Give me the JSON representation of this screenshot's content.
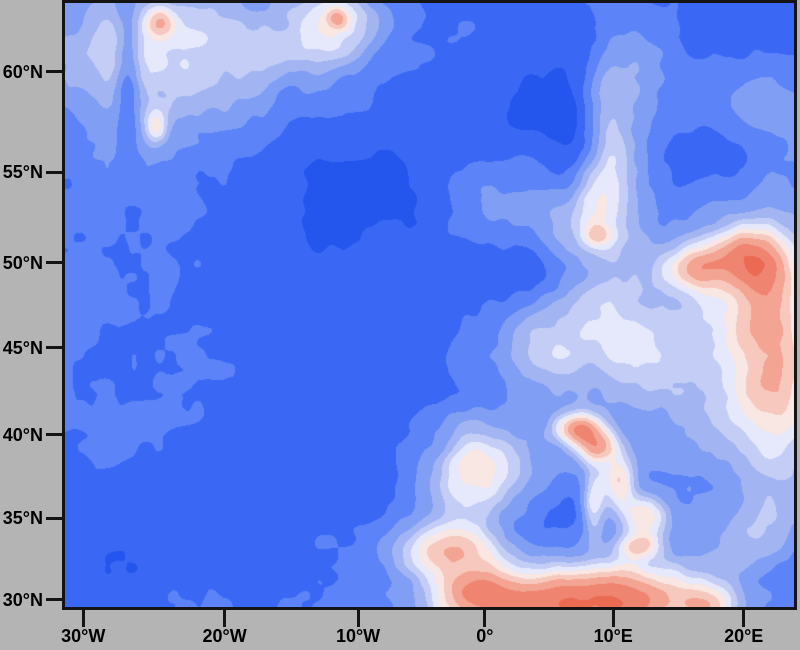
{
  "figure": {
    "background": "#b4b4b4",
    "frame_color": "#141414",
    "tick_color": "#141414",
    "label_color": "#000000"
  },
  "axes": {
    "lat_ticks": [
      {
        "label": "60°N",
        "pos": 0.114
      },
      {
        "label": "55°N",
        "pos": 0.28
      },
      {
        "label": "50°N",
        "pos": 0.43
      },
      {
        "label": "45°N",
        "pos": 0.571
      },
      {
        "label": "40°N",
        "pos": 0.715
      },
      {
        "label": "35°N",
        "pos": 0.853
      },
      {
        "label": "30°N",
        "pos": 0.988
      }
    ],
    "lon_ticks": [
      {
        "label": "30°W",
        "pos": 0.025
      },
      {
        "label": "20°W",
        "pos": 0.219
      },
      {
        "label": "10°W",
        "pos": 0.402
      },
      {
        "label": "0°",
        "pos": 0.576
      },
      {
        "label": "10°E",
        "pos": 0.752
      },
      {
        "label": "20°E",
        "pos": 0.931
      }
    ]
  },
  "map": {
    "type": "filled-contour-field",
    "region": "North Atlantic / Europe",
    "palette": [
      {
        "max": -3.4,
        "color": "#2456ee"
      },
      {
        "max": -2.6,
        "color": "#3a68f5"
      },
      {
        "max": -1.9,
        "color": "#5c83f7"
      },
      {
        "max": -1.3,
        "color": "#7f9ef4"
      },
      {
        "max": -0.8,
        "color": "#a2b5f2"
      },
      {
        "max": -0.35,
        "color": "#c4cdf5"
      },
      {
        "max": 0.1,
        "color": "#e6e9fb"
      },
      {
        "max": 0.55,
        "color": "#f9e7e3"
      },
      {
        "max": 1.1,
        "color": "#f7c8bd"
      },
      {
        "max": 1.8,
        "color": "#f3a493"
      },
      {
        "max": 2.6,
        "color": "#ef8470"
      },
      {
        "max": 99,
        "color": "#ea6a52"
      }
    ],
    "field_model": {
      "base": -2.1,
      "noise": [
        {
          "freq": 4.5,
          "amp": 0.4,
          "ox": 11.3,
          "oy": 7.7
        },
        {
          "freq": 11,
          "amp": 0.3,
          "ox": 3.1,
          "oy": 9.4
        },
        {
          "freq": 24,
          "amp": 0.22,
          "ox": 5.7,
          "oy": 1.2
        },
        {
          "freq": 55,
          "amp": 0.12,
          "ox": 8.9,
          "oy": 4.3
        }
      ],
      "blobs": [
        {
          "u": 0.36,
          "v": 0.4,
          "sx": 0.26,
          "sy": 0.27,
          "a": -1.1
        },
        {
          "u": 0.52,
          "v": 0.24,
          "sx": 0.2,
          "sy": 0.15,
          "a": -0.7
        },
        {
          "u": 0.07,
          "v": 0.97,
          "sx": 0.2,
          "sy": 0.1,
          "a": -0.7
        },
        {
          "u": 0.3,
          "v": 0.8,
          "sx": 0.22,
          "sy": 0.13,
          "a": -0.55
        },
        {
          "u": 0.88,
          "v": 0.04,
          "sx": 0.13,
          "sy": 0.09,
          "a": -1.0
        },
        {
          "u": 0.635,
          "v": 0.445,
          "sx": 0.055,
          "sy": 0.04,
          "a": -0.9
        },
        {
          "u": 0.645,
          "v": 0.875,
          "sx": 0.07,
          "sy": 0.042,
          "a": -0.7
        },
        {
          "u": 0.755,
          "v": 0.815,
          "sx": 0.042,
          "sy": 0.038,
          "a": -0.55
        },
        {
          "u": 0.086,
          "v": 0.13,
          "sx": 0.012,
          "sy": 0.1,
          "a": -1.5
        },
        {
          "u": 0.52,
          "v": 0.6,
          "sx": 0.1,
          "sy": 0.075,
          "a": -0.5
        },
        {
          "u": 0.895,
          "v": 0.255,
          "sx": 0.045,
          "sy": 0.035,
          "a": -0.9
        },
        {
          "u": 0.695,
          "v": 0.22,
          "sx": 0.022,
          "sy": 0.09,
          "a": -1.2
        },
        {
          "u": 0.145,
          "v": 0.1,
          "sx": 0.1,
          "sy": 0.105,
          "a": 2.3
        },
        {
          "u": 0.13,
          "v": 0.03,
          "sx": 0.013,
          "sy": 0.018,
          "a": 1.6
        },
        {
          "u": 0.125,
          "v": 0.205,
          "sx": 0.011,
          "sy": 0.022,
          "a": 1.5
        },
        {
          "u": 0.375,
          "v": 0.03,
          "sx": 0.055,
          "sy": 0.042,
          "a": 2.3
        },
        {
          "u": 0.374,
          "v": 0.025,
          "sx": 0.01,
          "sy": 0.012,
          "a": 1.5
        },
        {
          "u": 0.33,
          "v": 0.085,
          "sx": 0.09,
          "sy": 0.045,
          "a": 1.0
        },
        {
          "u": 0.44,
          "v": 0.16,
          "sx": 0.08,
          "sy": 0.05,
          "a": 0.8
        },
        {
          "u": 0.745,
          "v": 0.22,
          "sx": 0.033,
          "sy": 0.125,
          "a": 2.2
        },
        {
          "u": 0.7,
          "v": 0.345,
          "sx": 0.05,
          "sy": 0.055,
          "a": 1.9
        },
        {
          "u": 0.8,
          "v": 0.09,
          "sx": 0.05,
          "sy": 0.07,
          "a": 1.1
        },
        {
          "u": 0.73,
          "v": 0.385,
          "sx": 0.013,
          "sy": 0.013,
          "a": 1.3
        },
        {
          "u": 0.57,
          "v": 0.33,
          "sx": 0.05,
          "sy": 0.07,
          "a": 1.5
        },
        {
          "u": 0.8,
          "v": 0.52,
          "sx": 0.15,
          "sy": 0.11,
          "a": 1.4
        },
        {
          "u": 0.67,
          "v": 0.56,
          "sx": 0.07,
          "sy": 0.06,
          "a": 1.2
        },
        {
          "u": 0.865,
          "v": 0.44,
          "sx": 0.03,
          "sy": 0.027,
          "a": 2.4
        },
        {
          "u": 0.925,
          "v": 0.415,
          "sx": 0.04,
          "sy": 0.033,
          "a": 2.2
        },
        {
          "u": 0.975,
          "v": 0.63,
          "sx": 0.05,
          "sy": 0.12,
          "a": 2.9
        },
        {
          "u": 0.96,
          "v": 0.45,
          "sx": 0.033,
          "sy": 0.05,
          "a": 2.2
        },
        {
          "u": 0.705,
          "v": 0.705,
          "sx": 0.022,
          "sy": 0.018,
          "a": 3.1
        },
        {
          "u": 0.73,
          "v": 0.735,
          "sx": 0.02,
          "sy": 0.02,
          "a": 2.7
        },
        {
          "u": 0.76,
          "v": 0.795,
          "sx": 0.017,
          "sy": 0.035,
          "a": 2.9
        },
        {
          "u": 0.795,
          "v": 0.85,
          "sx": 0.022,
          "sy": 0.025,
          "a": 2.5
        },
        {
          "u": 0.725,
          "v": 0.83,
          "sx": 0.012,
          "sy": 0.04,
          "a": 2.5
        },
        {
          "u": 0.785,
          "v": 0.9,
          "sx": 0.022,
          "sy": 0.015,
          "a": 2.0
        },
        {
          "u": 0.555,
          "v": 0.8,
          "sx": 0.045,
          "sy": 0.05,
          "a": 2.3
        },
        {
          "u": 0.59,
          "v": 0.74,
          "sx": 0.06,
          "sy": 0.05,
          "a": 1.5
        },
        {
          "u": 0.525,
          "v": 0.905,
          "sx": 0.055,
          "sy": 0.033,
          "a": 3.3
        },
        {
          "u": 0.655,
          "v": 1.0,
          "sx": 0.1,
          "sy": 0.05,
          "a": 3.5
        },
        {
          "u": 0.77,
          "v": 0.99,
          "sx": 0.07,
          "sy": 0.04,
          "a": 2.8
        },
        {
          "u": 0.56,
          "v": 0.975,
          "sx": 0.035,
          "sy": 0.025,
          "a": 2.2
        },
        {
          "u": 0.885,
          "v": 1.0,
          "sx": 0.03,
          "sy": 0.027,
          "a": 2.4
        },
        {
          "u": 0.95,
          "v": 0.88,
          "sx": 0.05,
          "sy": 0.05,
          "a": 1.2
        },
        {
          "u": 0.94,
          "v": 0.16,
          "sx": 0.05,
          "sy": 0.05,
          "a": 0.9
        }
      ]
    }
  }
}
